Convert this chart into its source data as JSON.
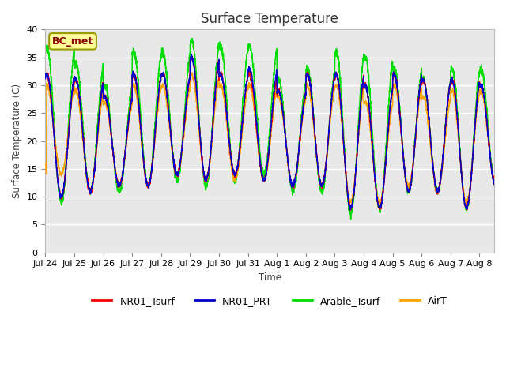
{
  "title": "Surface Temperature",
  "ylabel": "Surface Temperature (C)",
  "xlabel": "Time",
  "annotation": "BC_met",
  "ylim": [
    0,
    40
  ],
  "yticks": [
    0,
    5,
    10,
    15,
    20,
    25,
    30,
    35,
    40
  ],
  "series_colors": {
    "NR01_Tsurf": "#ff0000",
    "NR01_PRT": "#0000cd",
    "Arable_Tsurf": "#00dd00",
    "AirT": "#ffa500"
  },
  "series_lw": 1.1,
  "background_color": "#e8e8e8",
  "fig_background": "#ffffff",
  "x_tick_labels": [
    "Jul 24",
    "Jul 25",
    "Jul 26",
    "Jul 27",
    "Jul 28",
    "Jul 29",
    "Jul 30",
    "Jul 31",
    "Aug 1",
    "Aug 2",
    "Aug 3",
    "Aug 4",
    "Aug 5",
    "Aug 6",
    "Aug 7",
    "Aug 8"
  ]
}
